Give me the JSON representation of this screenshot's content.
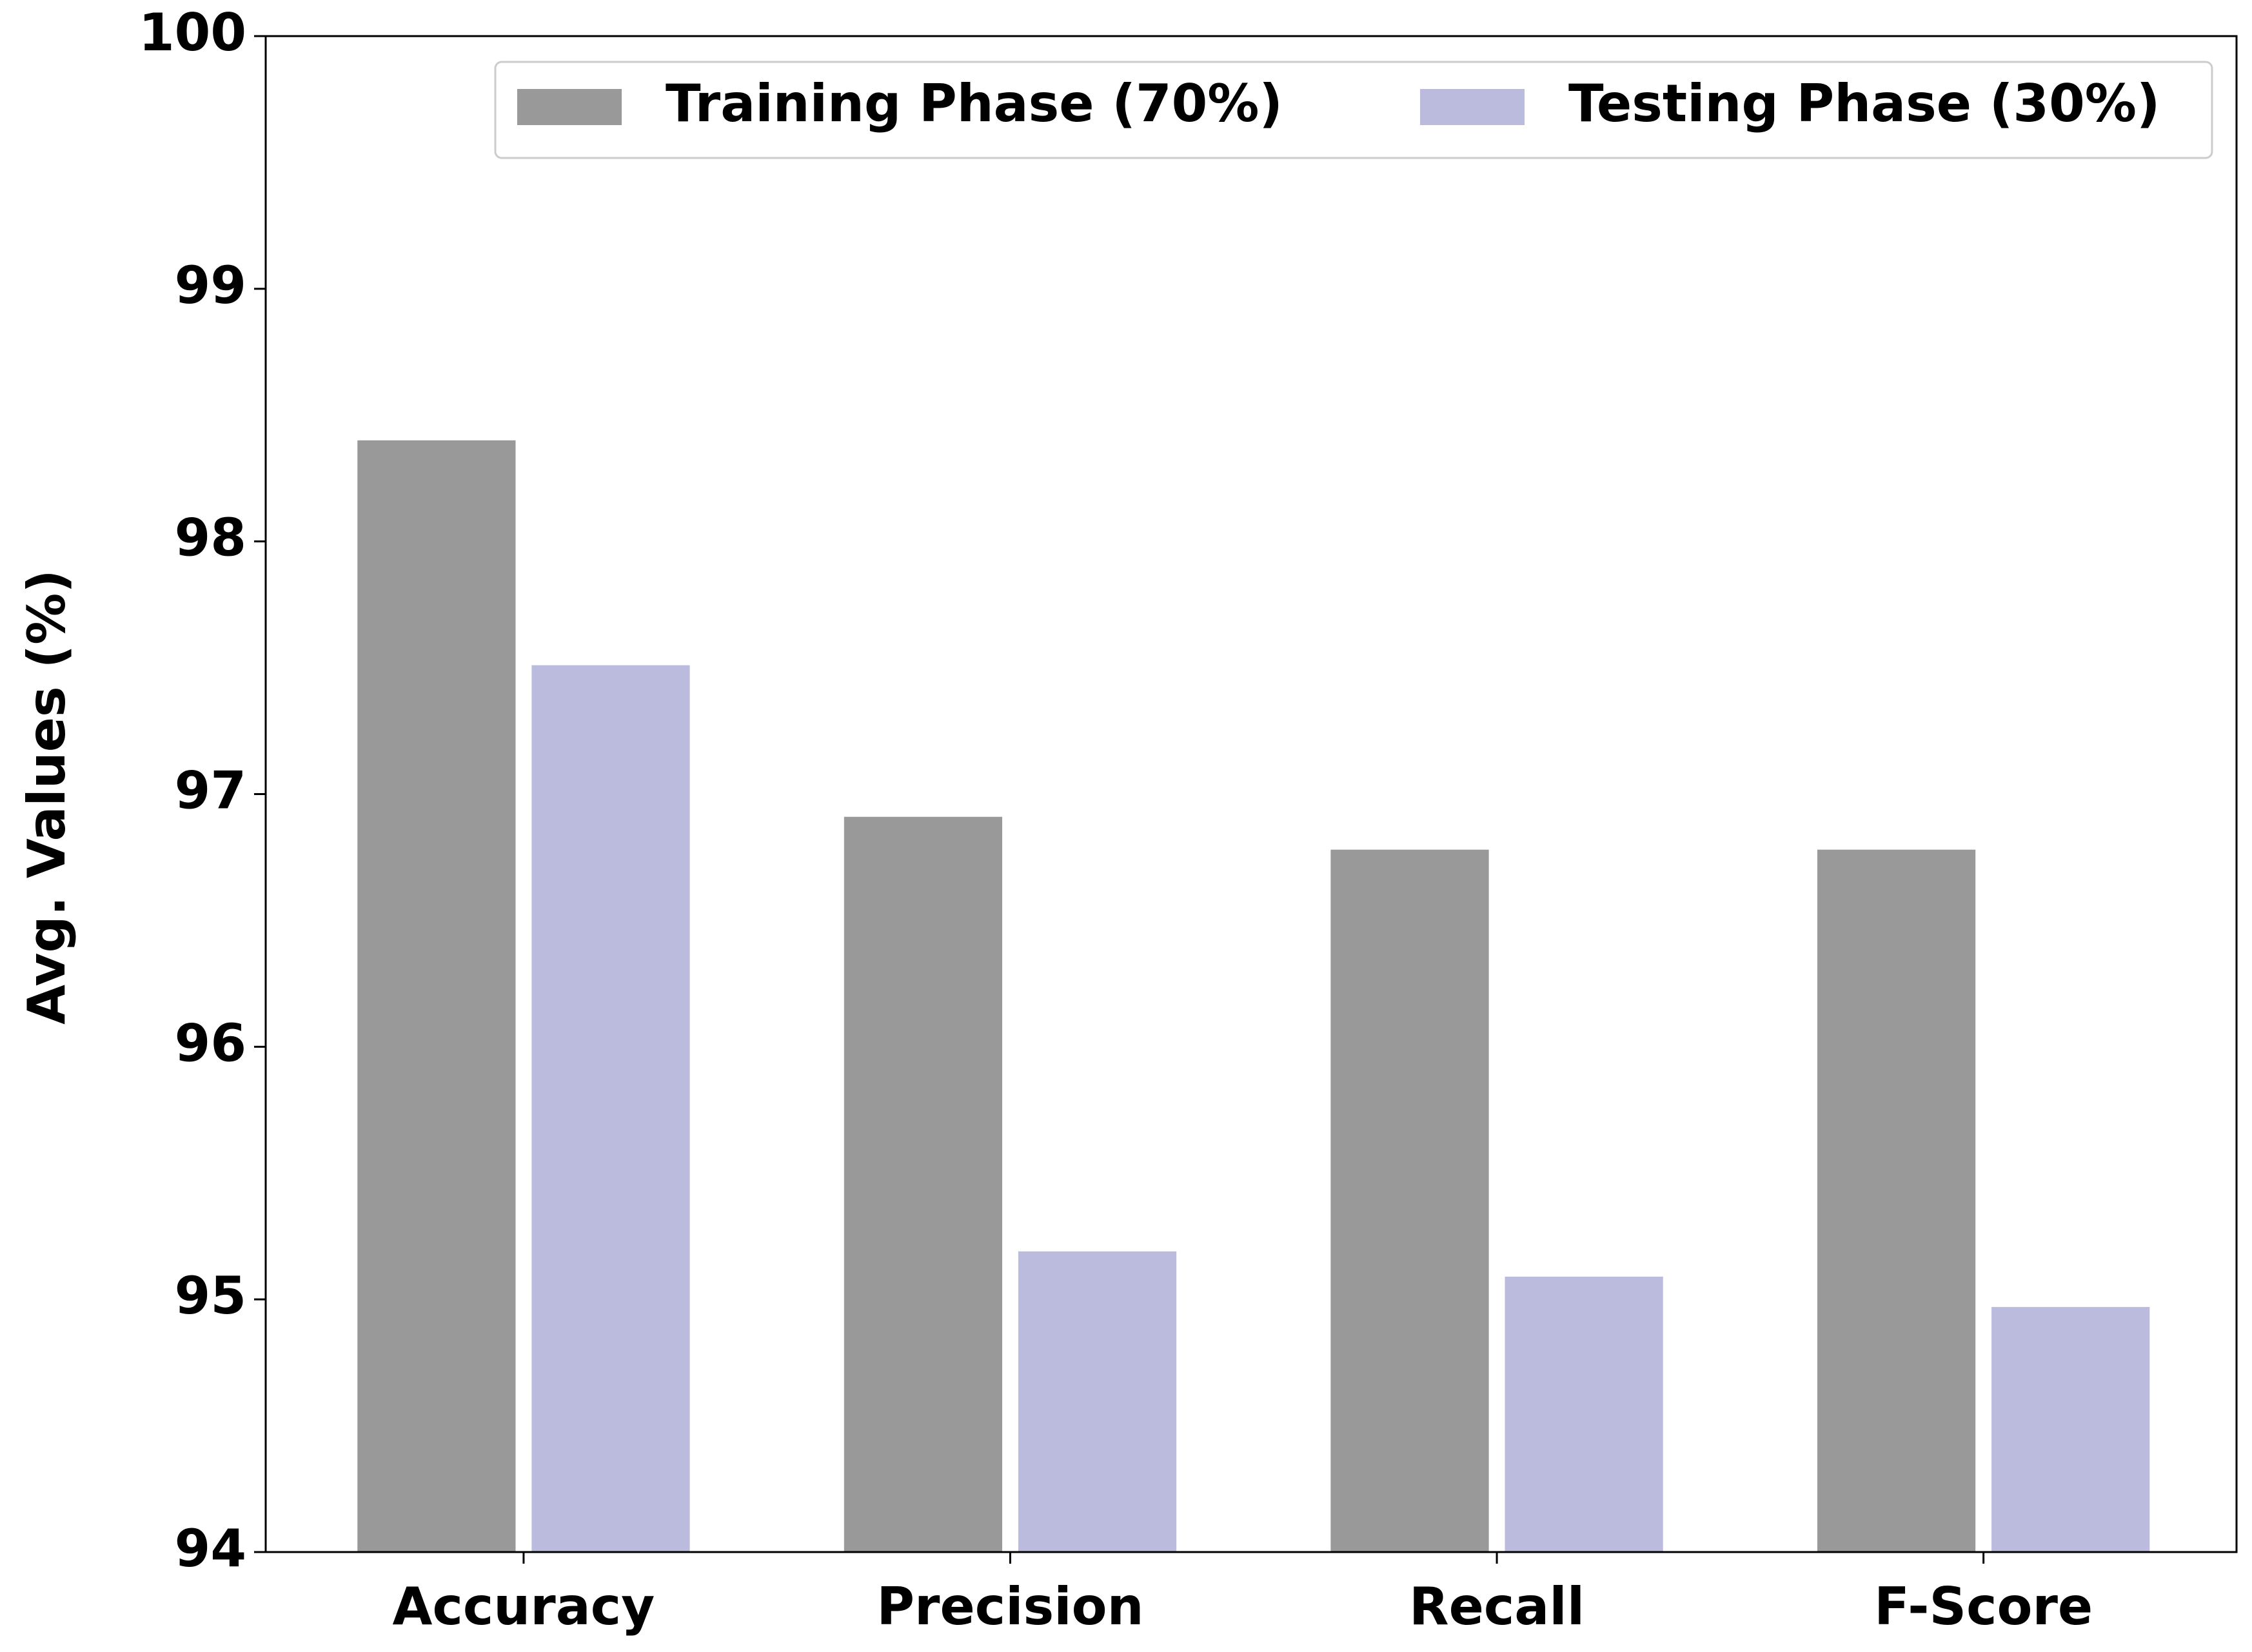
{
  "chart_data": {
    "type": "bar",
    "y_label": "Avg. Values (%)",
    "categories": [
      "Accuracy",
      "Precision",
      "Recall",
      "F-Score"
    ],
    "series": [
      {
        "name": "Training Phase (70%)",
        "color": "#999999",
        "values": [
          98.4,
          96.91,
          96.78,
          96.78
        ]
      },
      {
        "name": "Testing Phase (30%)",
        "color": "#bbbbdd",
        "values": [
          97.51,
          95.19,
          95.09,
          94.97
        ]
      }
    ],
    "ylim": [
      94,
      100
    ],
    "yticks": [
      94,
      95,
      96,
      97,
      98,
      99,
      100
    ],
    "legend": "upper right"
  }
}
